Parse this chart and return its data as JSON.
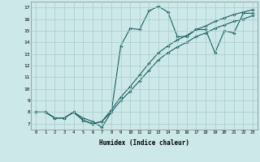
{
  "xlabel": "Humidex (Indice chaleur)",
  "xlim": [
    -0.5,
    23.5
  ],
  "ylim": [
    6.5,
    17.5
  ],
  "xticks": [
    0,
    1,
    2,
    3,
    4,
    5,
    6,
    7,
    8,
    9,
    10,
    11,
    12,
    13,
    14,
    15,
    16,
    17,
    18,
    19,
    20,
    21,
    22,
    23
  ],
  "yticks": [
    7,
    8,
    9,
    10,
    11,
    12,
    13,
    14,
    15,
    16,
    17
  ],
  "bg_color": "#cce8e8",
  "grid_color": "#aacccc",
  "line_color": "#1a6060",
  "line1_x": [
    0,
    1,
    2,
    3,
    4,
    5,
    6,
    7,
    8,
    9,
    10,
    11,
    12,
    13,
    14,
    15,
    16,
    17,
    18,
    19,
    20,
    21,
    22,
    23
  ],
  "line1_y": [
    8.0,
    8.0,
    7.5,
    7.5,
    8.0,
    7.5,
    7.2,
    6.7,
    8.0,
    13.7,
    15.2,
    15.1,
    16.7,
    17.1,
    16.6,
    14.5,
    14.5,
    15.1,
    15.1,
    13.1,
    15.0,
    14.8,
    16.5,
    16.5
  ],
  "line2_x": [
    0,
    1,
    2,
    3,
    4,
    5,
    6,
    7,
    8,
    9,
    10,
    11,
    12,
    13,
    14,
    15,
    16,
    17,
    18,
    19,
    20,
    21,
    22,
    23
  ],
  "line2_y": [
    8.0,
    8.0,
    7.5,
    7.5,
    8.0,
    7.3,
    7.0,
    7.2,
    8.2,
    9.3,
    10.2,
    11.2,
    12.2,
    13.1,
    13.7,
    14.2,
    14.6,
    15.1,
    15.4,
    15.8,
    16.1,
    16.4,
    16.6,
    16.8
  ],
  "line3_x": [
    0,
    1,
    2,
    3,
    4,
    5,
    6,
    7,
    8,
    9,
    10,
    11,
    12,
    13,
    14,
    15,
    16,
    17,
    18,
    19,
    20,
    21,
    22,
    23
  ],
  "line3_y": [
    8.0,
    8.0,
    7.5,
    7.5,
    8.0,
    7.3,
    7.0,
    7.2,
    8.0,
    9.0,
    9.8,
    10.7,
    11.6,
    12.5,
    13.1,
    13.6,
    14.0,
    14.5,
    14.8,
    15.2,
    15.5,
    15.8,
    16.0,
    16.3
  ]
}
